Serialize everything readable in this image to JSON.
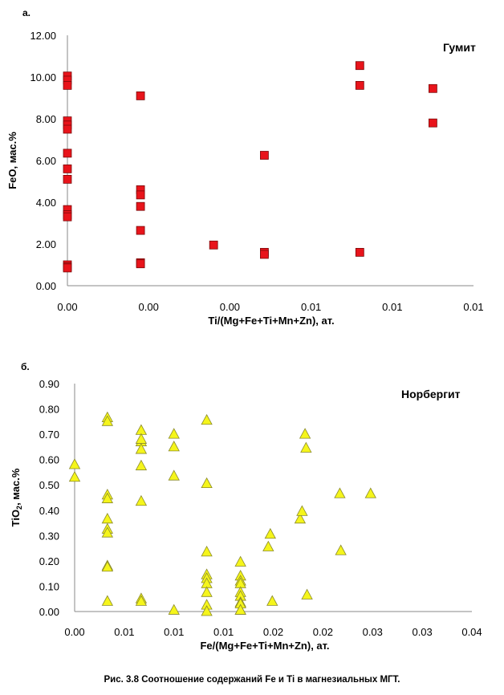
{
  "caption": "Рис. 3.8 Соотношение содержаний Fe и Ti в магнезиальных МГТ.",
  "chart_data": [
    {
      "type": "scatter",
      "panel_label": "а.",
      "title": "Гумит",
      "xlabel": "Ti/(Mg+Fe+Ti+Mn+Zn), ат.",
      "ylabel": "FeO, мас.%",
      "xlim": [
        0,
        0.01
      ],
      "ylim": [
        0,
        12
      ],
      "x_tick_labels": [
        "0.00",
        "0.00",
        "0.00",
        "0.01",
        "0.01",
        "0.01"
      ],
      "y_tick_labels": [
        "0.00",
        "2.00",
        "4.00",
        "6.00",
        "8.00",
        "10.00",
        "12.00"
      ],
      "grid": false,
      "marker": "square",
      "marker_color": "#e8141b",
      "series": [
        {
          "x": [
            0,
            0,
            0,
            0,
            0,
            0,
            0,
            0,
            0,
            0,
            0,
            0,
            0,
            0,
            0,
            0.0018,
            0.0018,
            0.0018,
            0.0018,
            0.0018,
            0.0018,
            0.0018,
            0.0036,
            0.00485,
            0.00485,
            0.00485,
            0.0072,
            0.0072,
            0.0072,
            0.009,
            0.009
          ],
          "y": [
            10.05,
            9.85,
            9.6,
            7.9,
            7.7,
            7.5,
            6.35,
            5.6,
            5.1,
            3.65,
            3.4,
            3.3,
            1.0,
            0.9,
            0.85,
            9.1,
            4.6,
            4.35,
            3.8,
            2.65,
            1.1,
            1.05,
            1.95,
            6.25,
            1.6,
            1.5,
            10.55,
            9.6,
            1.6,
            9.45,
            7.8
          ]
        }
      ]
    },
    {
      "type": "scatter",
      "panel_label": "б.",
      "title": "Норбергит",
      "xlabel": "Fe/(Mg+Fe+Ti+Mn+Zn), ат.",
      "ylabel_main": "TiO",
      "ylabel_sub": "2",
      "ylabel_rest": ", мас.%",
      "xlim": [
        0,
        0.04
      ],
      "ylim": [
        0,
        0.9
      ],
      "x_tick_labels": [
        "0.00",
        "0.01",
        "0.01",
        "0.01",
        "0.02",
        "0.02",
        "0.03",
        "0.03",
        "0.04"
      ],
      "y_tick_labels": [
        "0.00",
        "0.10",
        "0.20",
        "0.30",
        "0.40",
        "0.50",
        "0.60",
        "0.70",
        "0.80",
        "0.90"
      ],
      "grid": false,
      "marker": "triangle",
      "marker_color": "#f5f51b",
      "series": [
        {
          "x": [
            0,
            0,
            0.0033,
            0.0033,
            0.0033,
            0.0033,
            0.0033,
            0.0033,
            0.0033,
            0.0033,
            0.0033,
            0.0033,
            0.0067,
            0.0067,
            0.0067,
            0.0067,
            0.0067,
            0.0067,
            0.0067,
            0.0067,
            0.01,
            0.01,
            0.01,
            0.01,
            0.0133,
            0.0133,
            0.0133,
            0.0133,
            0.0133,
            0.0133,
            0.0133,
            0.0133,
            0.0133,
            0.0167,
            0.0167,
            0.0167,
            0.0167,
            0.0167,
            0.0167,
            0.0167,
            0.0167,
            0.0167,
            0.0167,
            0.0195,
            0.0197,
            0.0199,
            0.0227,
            0.0229,
            0.0232,
            0.0233,
            0.0234,
            0.0267,
            0.0268,
            0.0298
          ],
          "y": [
            0.58,
            0.53,
            0.765,
            0.75,
            0.46,
            0.445,
            0.365,
            0.325,
            0.31,
            0.18,
            0.175,
            0.04,
            0.715,
            0.67,
            0.68,
            0.64,
            0.575,
            0.435,
            0.05,
            0.04,
            0.7,
            0.65,
            0.535,
            0.005,
            0.755,
            0.505,
            0.235,
            0.145,
            0.13,
            0.11,
            0.075,
            0.025,
            0.0,
            0.195,
            0.14,
            0.12,
            0.11,
            0.075,
            0.06,
            0.035,
            0.03,
            0.005,
            0.005,
            0.255,
            0.305,
            0.04,
            0.365,
            0.395,
            0.7,
            0.645,
            0.065,
            0.465,
            0.24,
            0.465
          ]
        }
      ]
    }
  ]
}
